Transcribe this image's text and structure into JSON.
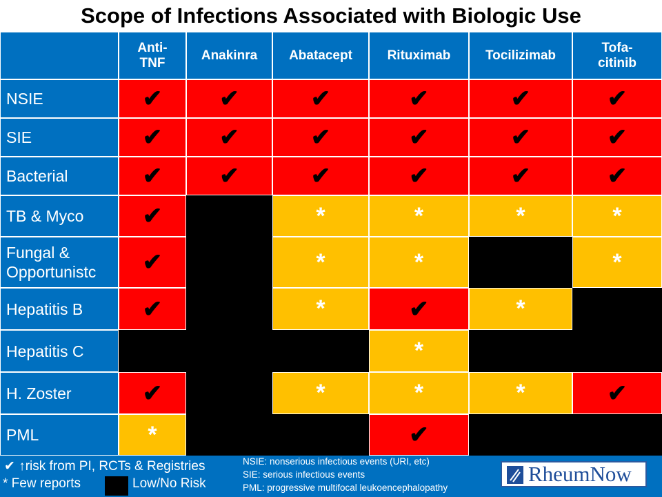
{
  "title": "Scope of Infections Associated with Biologic Use",
  "table": {
    "headers": [
      [
        "Anti-",
        "TNF"
      ],
      [
        "Anakinra"
      ],
      [
        "Abatacept"
      ],
      [
        "Rituximab"
      ],
      [
        "Tocilizimab"
      ],
      [
        "Tofa-",
        "citinib"
      ]
    ],
    "rows": [
      {
        "label": "NSIE",
        "cells": [
          {
            "mark": "✔",
            "color": "#ff0000"
          },
          {
            "mark": "✔",
            "color": "#ff0000"
          },
          {
            "mark": "✔",
            "color": "#ff0000"
          },
          {
            "mark": "✔",
            "color": "#ff0000"
          },
          {
            "mark": "✔",
            "color": "#ff0000"
          },
          {
            "mark": "✔",
            "color": "#ff0000"
          }
        ]
      },
      {
        "label": "SIE",
        "cells": [
          {
            "mark": "✔",
            "color": "#ff0000"
          },
          {
            "mark": "✔",
            "color": "#ff0000"
          },
          {
            "mark": "✔",
            "color": "#ff0000"
          },
          {
            "mark": "✔",
            "color": "#ff0000"
          },
          {
            "mark": "✔",
            "color": "#ff0000"
          },
          {
            "mark": "✔",
            "color": "#ff0000"
          }
        ]
      },
      {
        "label": "Bacterial",
        "cells": [
          {
            "mark": "✔",
            "color": "#ff0000"
          },
          {
            "mark": "✔",
            "color": "#ff0000"
          },
          {
            "mark": "✔",
            "color": "#ff0000"
          },
          {
            "mark": "✔",
            "color": "#ff0000"
          },
          {
            "mark": "✔",
            "color": "#ff0000"
          },
          {
            "mark": "✔",
            "color": "#ff0000"
          }
        ]
      },
      {
        "label": "TB & Myco",
        "cells": [
          {
            "mark": "✔",
            "color": "#ff0000"
          },
          {
            "color": "#000000"
          },
          {
            "mark": "*",
            "color": "#ffc000"
          },
          {
            "mark": "*",
            "color": "#ffc000"
          },
          {
            "mark": "*",
            "color": "#ffc000"
          },
          {
            "mark": "*",
            "color": "#ffc000"
          }
        ]
      },
      {
        "label": "Fungal & Opportunistc",
        "cells": [
          {
            "mark": "✔",
            "color": "#ff0000"
          },
          {
            "color": "#000000"
          },
          {
            "mark": "*",
            "color": "#ffc000"
          },
          {
            "mark": "*",
            "color": "#ffc000"
          },
          {
            "color": "#000000"
          },
          {
            "mark": "*",
            "color": "#ffc000"
          }
        ]
      },
      {
        "label": "Hepatitis B",
        "cells": [
          {
            "mark": "✔",
            "color": "#ff0000"
          },
          {
            "color": "#000000"
          },
          {
            "mark": "*",
            "color": "#ffc000"
          },
          {
            "mark": "✔",
            "color": "#ff0000"
          },
          {
            "mark": "*",
            "color": "#ffc000"
          },
          {
            "color": "#000000"
          }
        ]
      },
      {
        "label": "Hepatitis C",
        "cells": [
          {
            "color": "#000000"
          },
          {
            "color": "#000000"
          },
          {
            "color": "#000000"
          },
          {
            "mark": "*",
            "color": "#ffc000"
          },
          {
            "color": "#000000"
          },
          {
            "color": "#000000"
          }
        ]
      },
      {
        "label": "H. Zoster",
        "cells": [
          {
            "mark": "✔",
            "color": "#ff0000"
          },
          {
            "color": "#000000"
          },
          {
            "mark": "*",
            "color": "#ffc000"
          },
          {
            "mark": "*",
            "color": "#ffc000"
          },
          {
            "mark": "*",
            "color": "#ffc000"
          },
          {
            "mark": "✔",
            "color": "#ff0000"
          }
        ]
      },
      {
        "label": "PML",
        "cells": [
          {
            "mark": "*",
            "color": "#ffc000"
          },
          {
            "color": "#000000"
          },
          {
            "color": "#000000"
          },
          {
            "mark": "✔",
            "color": "#ff0000"
          },
          {
            "color": "#000000"
          },
          {
            "color": "#000000"
          }
        ]
      }
    ]
  },
  "legend": {
    "check": "✔ ↑risk from PI, RCTs & Registries",
    "star": "* Few reports",
    "black": "Low/No Risk"
  },
  "notes": [
    "NSIE: nonserious infectious events (URI, etc)",
    "SIE: serious infectious events",
    "PML: progressive multifocal leukoencephalopathy"
  ],
  "logo": "RheumNow"
}
